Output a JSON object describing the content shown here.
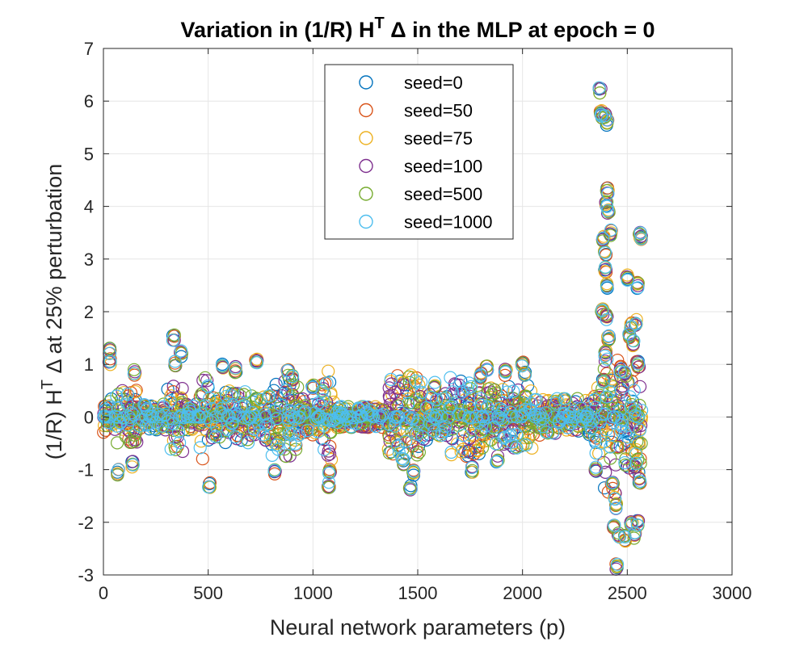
{
  "chart_data": {
    "type": "scatter",
    "marker": "open-circle",
    "title": "Variation in (1/R) H",
    "title_superscript": "T",
    "title_rest": " Δ in the MLP at epoch = 0",
    "xlabel": "Neural network parameters (p)",
    "ylabel_main": "(1/R) H",
    "ylabel_superscript": "T",
    "ylabel_rest": " Δ at 25% perturbation",
    "xlim": [
      0,
      3000
    ],
    "ylim": [
      -3,
      7
    ],
    "xticks": [
      0,
      500,
      1000,
      1500,
      2000,
      2500,
      3000
    ],
    "yticks": [
      -3,
      -2,
      -1,
      0,
      1,
      2,
      3,
      4,
      5,
      6,
      7
    ],
    "xtick_labels": [
      "0",
      "500",
      "1000",
      "1500",
      "2000",
      "2500",
      "3000"
    ],
    "ytick_labels": [
      "-3",
      "-2",
      "-1",
      "0",
      "1",
      "2",
      "3",
      "4",
      "5",
      "6",
      "7"
    ],
    "grid": true,
    "legend_position": "top-center",
    "series": [
      {
        "name": "seed=0",
        "color": "#0072BD"
      },
      {
        "name": "seed=50",
        "color": "#D95319"
      },
      {
        "name": "seed=75",
        "color": "#EDB120"
      },
      {
        "name": "seed=100",
        "color": "#7E2F8E"
      },
      {
        "name": "seed=500",
        "color": "#77AC30"
      },
      {
        "name": "seed=1000",
        "color": "#4DBEEE"
      }
    ],
    "band_amplitudes": [
      {
        "x_range": [
          0,
          60
        ],
        "amp": 0.35
      },
      {
        "x_range": [
          60,
          160
        ],
        "amp": 0.6
      },
      {
        "x_range": [
          160,
          300
        ],
        "amp": 0.25
      },
      {
        "x_range": [
          300,
          380
        ],
        "amp": 0.7
      },
      {
        "x_range": [
          380,
          460
        ],
        "amp": 0.25
      },
      {
        "x_range": [
          460,
          520
        ],
        "amp": 0.8
      },
      {
        "x_range": [
          520,
          700
        ],
        "amp": 0.5
      },
      {
        "x_range": [
          700,
          780
        ],
        "amp": 0.45
      },
      {
        "x_range": [
          780,
          930
        ],
        "amp": 0.75
      },
      {
        "x_range": [
          930,
          1040
        ],
        "amp": 0.35
      },
      {
        "x_range": [
          1040,
          1100
        ],
        "amp": 0.9
      },
      {
        "x_range": [
          1100,
          1360
        ],
        "amp": 0.2
      },
      {
        "x_range": [
          1360,
          1520
        ],
        "amp": 0.8
      },
      {
        "x_range": [
          1520,
          1650
        ],
        "amp": 0.45
      },
      {
        "x_range": [
          1650,
          1820
        ],
        "amp": 0.75
      },
      {
        "x_range": [
          1820,
          2050
        ],
        "amp": 0.6
      },
      {
        "x_range": [
          2050,
          2340
        ],
        "amp": 0.35
      },
      {
        "x_range": [
          2340,
          2380
        ],
        "amp": 0.7
      },
      {
        "x_range": [
          2380,
          2430
        ],
        "amp": 1.5
      },
      {
        "x_range": [
          2430,
          2570
        ],
        "amp": 1.1
      }
    ],
    "highlight_points": [
      {
        "x": 30,
        "y": 1.25
      },
      {
        "x": 30,
        "y": 1.05
      },
      {
        "x": 70,
        "y": -1.05
      },
      {
        "x": 140,
        "y": -0.9
      },
      {
        "x": 150,
        "y": 0.85
      },
      {
        "x": 335,
        "y": 1.5
      },
      {
        "x": 345,
        "y": 1.0
      },
      {
        "x": 370,
        "y": 1.2
      },
      {
        "x": 505,
        "y": -1.3
      },
      {
        "x": 570,
        "y": 0.98
      },
      {
        "x": 630,
        "y": 0.9
      },
      {
        "x": 730,
        "y": 1.05
      },
      {
        "x": 820,
        "y": -1.05
      },
      {
        "x": 880,
        "y": 0.85
      },
      {
        "x": 900,
        "y": 0.75
      },
      {
        "x": 1000,
        "y": 0.6
      },
      {
        "x": 1075,
        "y": -1.3
      },
      {
        "x": 1080,
        "y": -1.05
      },
      {
        "x": 1430,
        "y": -0.85
      },
      {
        "x": 1465,
        "y": -1.35
      },
      {
        "x": 1480,
        "y": -1.05
      },
      {
        "x": 1580,
        "y": 0.6
      },
      {
        "x": 1760,
        "y": -1.0
      },
      {
        "x": 1800,
        "y": 0.8
      },
      {
        "x": 1830,
        "y": 0.95
      },
      {
        "x": 1880,
        "y": -0.8
      },
      {
        "x": 1920,
        "y": 0.85
      },
      {
        "x": 2000,
        "y": 1.0
      },
      {
        "x": 2010,
        "y": 0.85
      },
      {
        "x": 2350,
        "y": -1.0
      },
      {
        "x": 2370,
        "y": 6.2
      },
      {
        "x": 2375,
        "y": 5.8
      },
      {
        "x": 2380,
        "y": 5.7
      },
      {
        "x": 2395,
        "y": 5.75
      },
      {
        "x": 2405,
        "y": 5.6
      },
      {
        "x": 2405,
        "y": 4.3
      },
      {
        "x": 2400,
        "y": 4.05
      },
      {
        "x": 2410,
        "y": 3.9
      },
      {
        "x": 2385,
        "y": 3.4
      },
      {
        "x": 2395,
        "y": 3.1
      },
      {
        "x": 2420,
        "y": 3.5
      },
      {
        "x": 2395,
        "y": 2.8
      },
      {
        "x": 2405,
        "y": 2.5
      },
      {
        "x": 2380,
        "y": 2.0
      },
      {
        "x": 2400,
        "y": 1.9
      },
      {
        "x": 2410,
        "y": 1.5
      },
      {
        "x": 2395,
        "y": 1.2
      },
      {
        "x": 2385,
        "y": 0.7
      },
      {
        "x": 2560,
        "y": 3.45
      },
      {
        "x": 2565,
        "y": 3.4
      },
      {
        "x": 2500,
        "y": 2.65
      },
      {
        "x": 2550,
        "y": 2.5
      },
      {
        "x": 2540,
        "y": 1.8
      },
      {
        "x": 2520,
        "y": 1.75
      },
      {
        "x": 2510,
        "y": 1.55
      },
      {
        "x": 2530,
        "y": 1.4
      },
      {
        "x": 2550,
        "y": 1.0
      },
      {
        "x": 2470,
        "y": 0.9
      },
      {
        "x": 2490,
        "y": 0.8
      },
      {
        "x": 2430,
        "y": -1.3
      },
      {
        "x": 2440,
        "y": -1.5
      },
      {
        "x": 2445,
        "y": -1.7
      },
      {
        "x": 2435,
        "y": -2.05
      },
      {
        "x": 2460,
        "y": -2.25
      },
      {
        "x": 2490,
        "y": -2.3
      },
      {
        "x": 2520,
        "y": -2.05
      },
      {
        "x": 2550,
        "y": -2.0
      },
      {
        "x": 2535,
        "y": -2.25
      },
      {
        "x": 2450,
        "y": -2.85
      },
      {
        "x": 2560,
        "y": -1.2
      },
      {
        "x": 2540,
        "y": -0.9
      }
    ]
  }
}
